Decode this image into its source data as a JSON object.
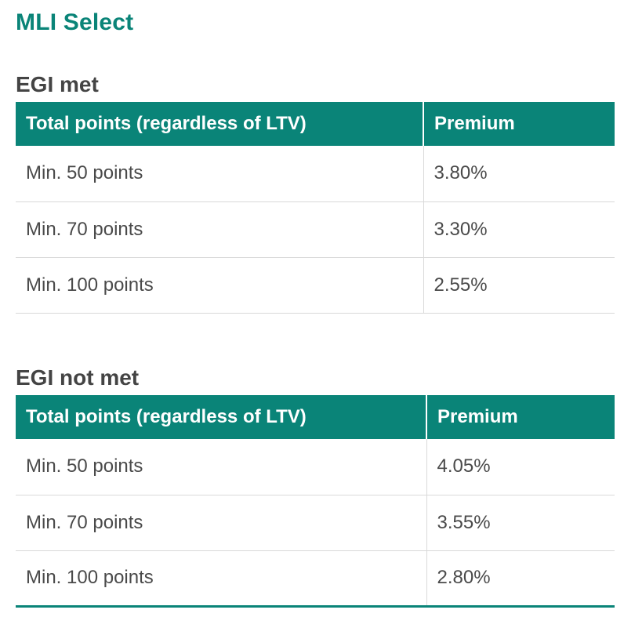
{
  "page_title": "MLI Select",
  "colors": {
    "accent": "#0a8478",
    "text": "#444444",
    "row_divider": "#d9d9d9"
  },
  "sections": [
    {
      "title": "EGI met",
      "headers": [
        "Total points (regardless of LTV)",
        "Premium"
      ],
      "rows": [
        [
          "Min. 50 points",
          "3.80%"
        ],
        [
          "Min. 70 points",
          "3.30%"
        ],
        [
          "Min. 100 points",
          "2.55%"
        ]
      ]
    },
    {
      "title": "EGI not met",
      "headers": [
        "Total points (regardless of LTV)",
        "Premium"
      ],
      "rows": [
        [
          "Min. 50 points",
          "4.05%"
        ],
        [
          "Min. 70 points",
          "3.55%"
        ],
        [
          "Min. 100 points",
          "2.80%"
        ]
      ]
    }
  ]
}
